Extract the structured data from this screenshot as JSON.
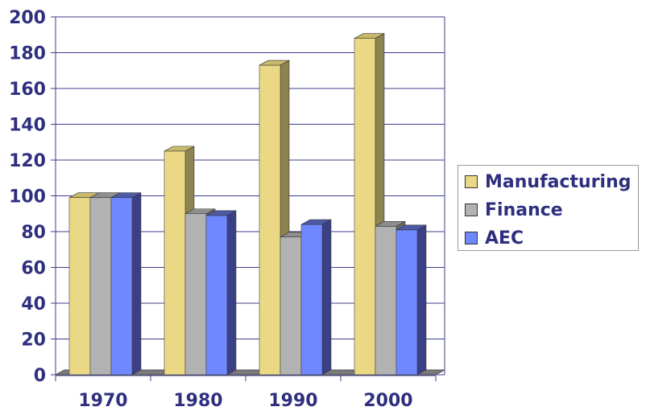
{
  "chart_data": {
    "type": "bar",
    "categories": [
      "1970",
      "1980",
      "1990",
      "2000"
    ],
    "series": [
      {
        "name": "Manufacturing",
        "values": [
          99,
          125,
          173,
          188
        ],
        "color": "#ead884",
        "side_color": "#8d8350",
        "top_color": "#c9b96a"
      },
      {
        "name": "Finance",
        "values": [
          99,
          90,
          77,
          83
        ],
        "color": "#b2b2b2",
        "side_color": "#6a6a6a",
        "top_color": "#8e8e8e"
      },
      {
        "name": "AEC",
        "values": [
          99,
          89,
          84,
          81
        ],
        "color": "#6f87ff",
        "side_color": "#3a3f86",
        "top_color": "#4d5aa8"
      }
    ],
    "ylim": [
      0,
      200
    ],
    "yticks": [
      "0",
      "20",
      "40",
      "60",
      "80",
      "100",
      "120",
      "140",
      "160",
      "180",
      "200"
    ],
    "grid": true,
    "legend": "right",
    "title": "",
    "xlabel": "",
    "ylabel": ""
  }
}
